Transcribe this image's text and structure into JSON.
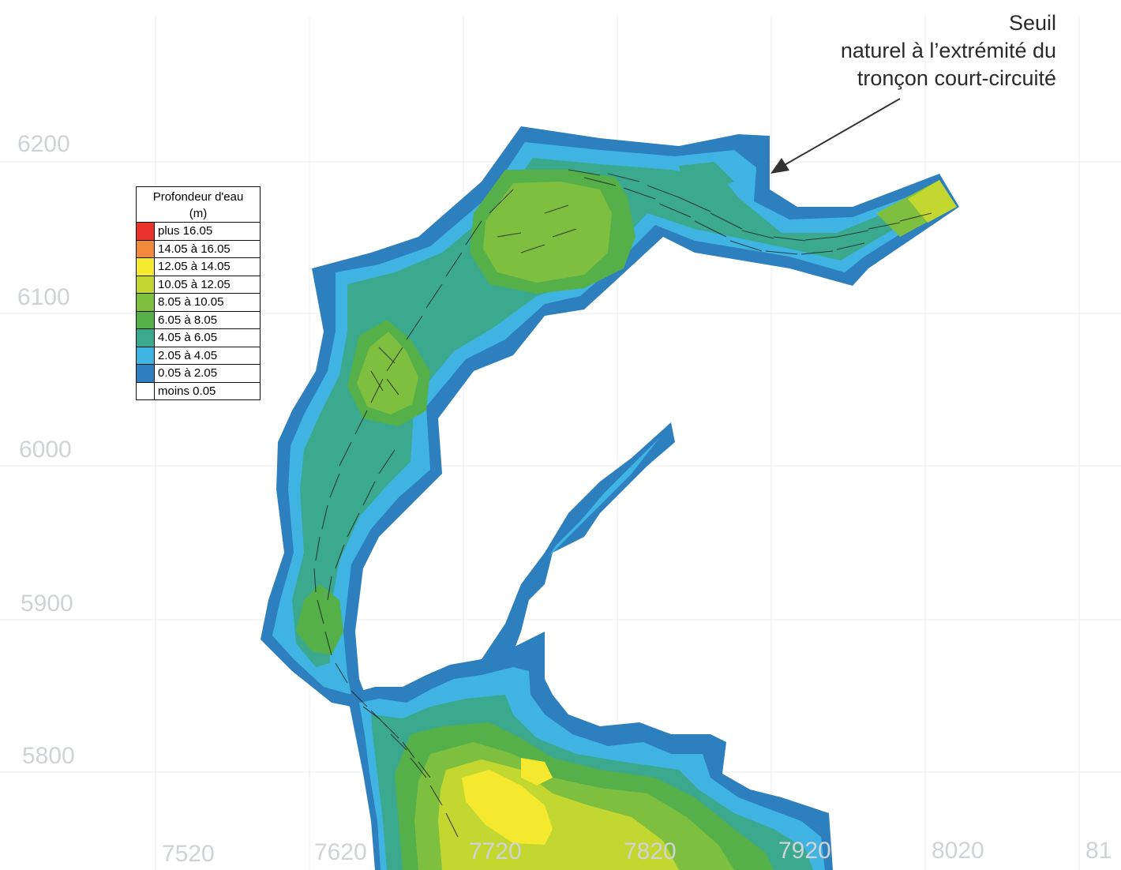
{
  "legend": {
    "title_line1": "Profondeur d'eau",
    "title_line2": "(m)",
    "classes": [
      {
        "label": "plus 16.05",
        "color": "#e8332b"
      },
      {
        "label": "14.05 à 16.05",
        "color": "#f08a3c"
      },
      {
        "label": "12.05 à 14.05",
        "color": "#f4e92e"
      },
      {
        "label": "10.05 à 12.05",
        "color": "#c3d731"
      },
      {
        "label": "8.05 à 10.05",
        "color": "#7fbf3f"
      },
      {
        "label": "6.05 à 8.05",
        "color": "#56b04a"
      },
      {
        "label": "4.05 à 6.05",
        "color": "#3aa98e"
      },
      {
        "label": "2.05 à 4.05",
        "color": "#3fb4e2"
      },
      {
        "label": "0.05 à 2.05",
        "color": "#2d7fbd"
      },
      {
        "label": "moins 0.05",
        "color": "#ffffff"
      }
    ]
  },
  "y_ticks": [
    "6200",
    "6100",
    "6000",
    "5900",
    "5800"
  ],
  "x_ticks": [
    "7520",
    "7620",
    "7720",
    "7820",
    "7920",
    "8020",
    "81"
  ],
  "annotation": {
    "line1": "Seuil",
    "line2": "naturel à l’extrémité du",
    "line3": "tronçon court-circuité"
  }
}
